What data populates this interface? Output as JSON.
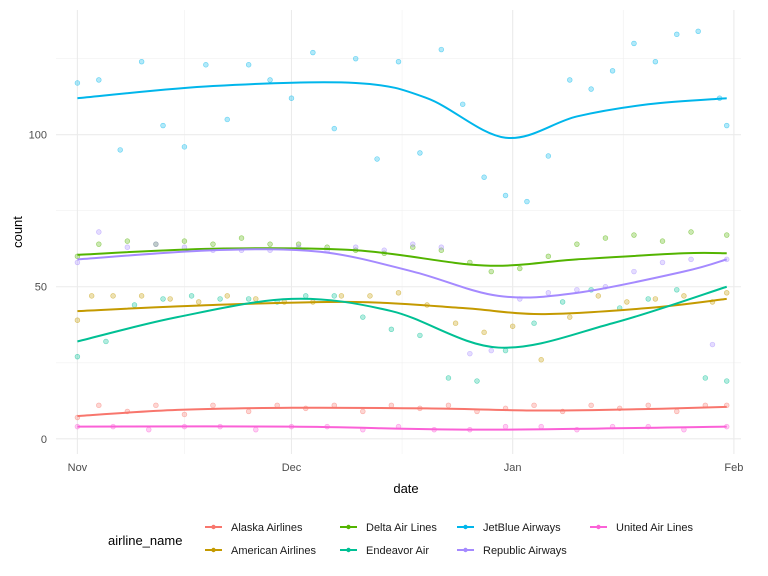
{
  "chart_data": {
    "type": "scatter",
    "title": "",
    "xlabel": "date",
    "ylabel": "count",
    "x_ticks": [
      "Nov",
      "Dec",
      "Jan",
      "Feb"
    ],
    "y_ticks": [
      0,
      50,
      100
    ],
    "xlim": [
      "2013-10-29",
      "2014-02-02"
    ],
    "ylim": [
      -5,
      141
    ],
    "grid": true,
    "legend_title": "airline_name",
    "legend_position": "bottom",
    "smooth_lines": true,
    "series": [
      {
        "name": "Alaska Airlines",
        "color": "#F8766D",
        "points": [
          [
            "2013-11-01",
            7
          ],
          [
            "2013-11-04",
            11
          ],
          [
            "2013-11-08",
            9
          ],
          [
            "2013-11-12",
            11
          ],
          [
            "2013-11-16",
            8
          ],
          [
            "2013-11-20",
            11
          ],
          [
            "2013-11-25",
            9
          ],
          [
            "2013-11-29",
            11
          ],
          [
            "2013-12-03",
            10
          ],
          [
            "2013-12-07",
            11
          ],
          [
            "2013-12-11",
            9
          ],
          [
            "2013-12-15",
            11
          ],
          [
            "2013-12-19",
            10
          ],
          [
            "2013-12-23",
            11
          ],
          [
            "2013-12-27",
            9
          ],
          [
            "2013-12-31",
            10
          ],
          [
            "2014-01-04",
            11
          ],
          [
            "2014-01-08",
            9
          ],
          [
            "2014-01-12",
            11
          ],
          [
            "2014-01-16",
            10
          ],
          [
            "2014-01-20",
            11
          ],
          [
            "2014-01-24",
            9
          ],
          [
            "2014-01-28",
            11
          ],
          [
            "2014-01-31",
            11
          ]
        ],
        "smooth": [
          [
            "2013-11-01",
            7.5
          ],
          [
            "2013-11-15",
            9.5
          ],
          [
            "2013-12-01",
            10.2
          ],
          [
            "2013-12-20",
            10.0
          ],
          [
            "2014-01-05",
            9.3
          ],
          [
            "2014-01-20",
            9.8
          ],
          [
            "2014-01-31",
            10.5
          ]
        ]
      },
      {
        "name": "American Airlines",
        "color": "#C49A00",
        "points": [
          [
            "2013-11-01",
            39
          ],
          [
            "2013-11-03",
            47
          ],
          [
            "2013-11-06",
            47
          ],
          [
            "2013-11-10",
            47
          ],
          [
            "2013-11-14",
            46
          ],
          [
            "2013-11-18",
            45
          ],
          [
            "2013-11-22",
            47
          ],
          [
            "2013-11-26",
            46
          ],
          [
            "2013-11-30",
            45
          ],
          [
            "2013-12-04",
            45
          ],
          [
            "2013-12-08",
            47
          ],
          [
            "2013-12-12",
            47
          ],
          [
            "2013-12-16",
            48
          ],
          [
            "2013-12-20",
            44
          ],
          [
            "2013-12-24",
            38
          ],
          [
            "2013-12-28",
            35
          ],
          [
            "2014-01-01",
            37
          ],
          [
            "2014-01-05",
            26
          ],
          [
            "2014-01-09",
            40
          ],
          [
            "2014-01-13",
            47
          ],
          [
            "2014-01-17",
            45
          ],
          [
            "2014-01-21",
            46
          ],
          [
            "2014-01-25",
            47
          ],
          [
            "2014-01-29",
            45
          ],
          [
            "2014-01-31",
            48
          ]
        ],
        "smooth": [
          [
            "2013-11-01",
            42
          ],
          [
            "2013-11-20",
            44
          ],
          [
            "2013-12-10",
            45
          ],
          [
            "2013-12-25",
            43
          ],
          [
            "2014-01-05",
            41
          ],
          [
            "2014-01-20",
            43
          ],
          [
            "2014-01-31",
            46
          ]
        ]
      },
      {
        "name": "Delta Air Lines",
        "color": "#53B400",
        "points": [
          [
            "2013-11-01",
            60
          ],
          [
            "2013-11-04",
            64
          ],
          [
            "2013-11-08",
            65
          ],
          [
            "2013-11-12",
            64
          ],
          [
            "2013-11-16",
            65
          ],
          [
            "2013-11-20",
            64
          ],
          [
            "2013-11-24",
            66
          ],
          [
            "2013-11-28",
            64
          ],
          [
            "2013-12-02",
            64
          ],
          [
            "2013-12-06",
            63
          ],
          [
            "2013-12-10",
            62
          ],
          [
            "2013-12-14",
            61
          ],
          [
            "2013-12-18",
            63
          ],
          [
            "2013-12-22",
            62
          ],
          [
            "2013-12-26",
            58
          ],
          [
            "2013-12-29",
            55
          ],
          [
            "2014-01-02",
            56
          ],
          [
            "2014-01-06",
            60
          ],
          [
            "2014-01-10",
            64
          ],
          [
            "2014-01-14",
            66
          ],
          [
            "2014-01-18",
            67
          ],
          [
            "2014-01-22",
            65
          ],
          [
            "2014-01-26",
            68
          ],
          [
            "2014-01-31",
            67
          ]
        ],
        "smooth": [
          [
            "2013-11-01",
            60.5
          ],
          [
            "2013-11-20",
            62.5
          ],
          [
            "2013-12-10",
            62
          ],
          [
            "2013-12-28",
            57
          ],
          [
            "2014-01-10",
            59
          ],
          [
            "2014-01-25",
            61
          ],
          [
            "2014-01-31",
            61
          ]
        ]
      },
      {
        "name": "Endeavor Air",
        "color": "#00C094",
        "points": [
          [
            "2013-11-01",
            27
          ],
          [
            "2013-11-05",
            32
          ],
          [
            "2013-11-09",
            44
          ],
          [
            "2013-11-13",
            46
          ],
          [
            "2013-11-17",
            47
          ],
          [
            "2013-11-21",
            46
          ],
          [
            "2013-11-25",
            46
          ],
          [
            "2013-11-29",
            45
          ],
          [
            "2013-12-03",
            47
          ],
          [
            "2013-12-07",
            47
          ],
          [
            "2013-12-11",
            40
          ],
          [
            "2013-12-15",
            36
          ],
          [
            "2013-12-19",
            34
          ],
          [
            "2013-12-23",
            20
          ],
          [
            "2013-12-27",
            19
          ],
          [
            "2013-12-31",
            29
          ],
          [
            "2014-01-04",
            38
          ],
          [
            "2014-01-08",
            45
          ],
          [
            "2014-01-12",
            49
          ],
          [
            "2014-01-16",
            43
          ],
          [
            "2014-01-20",
            46
          ],
          [
            "2014-01-24",
            49
          ],
          [
            "2014-01-28",
            20
          ],
          [
            "2014-01-31",
            19
          ]
        ],
        "smooth": [
          [
            "2013-11-01",
            32
          ],
          [
            "2013-11-15",
            40
          ],
          [
            "2013-12-01",
            46
          ],
          [
            "2013-12-15",
            42
          ],
          [
            "2013-12-30",
            30
          ],
          [
            "2014-01-15",
            38
          ],
          [
            "2014-01-31",
            50
          ]
        ]
      },
      {
        "name": "JetBlue Airways",
        "color": "#00B6EB",
        "points": [
          [
            "2013-11-01",
            117
          ],
          [
            "2013-11-04",
            118
          ],
          [
            "2013-11-07",
            95
          ],
          [
            "2013-11-10",
            124
          ],
          [
            "2013-11-13",
            103
          ],
          [
            "2013-11-16",
            96
          ],
          [
            "2013-11-19",
            123
          ],
          [
            "2013-11-22",
            105
          ],
          [
            "2013-11-25",
            123
          ],
          [
            "2013-11-28",
            118
          ],
          [
            "2013-12-01",
            112
          ],
          [
            "2013-12-04",
            127
          ],
          [
            "2013-12-07",
            102
          ],
          [
            "2013-12-10",
            125
          ],
          [
            "2013-12-13",
            92
          ],
          [
            "2013-12-16",
            124
          ],
          [
            "2013-12-19",
            94
          ],
          [
            "2013-12-22",
            128
          ],
          [
            "2013-12-25",
            110
          ],
          [
            "2013-12-28",
            86
          ],
          [
            "2013-12-31",
            80
          ],
          [
            "2014-01-03",
            78
          ],
          [
            "2014-01-06",
            93
          ],
          [
            "2014-01-09",
            118
          ],
          [
            "2014-01-12",
            115
          ],
          [
            "2014-01-15",
            121
          ],
          [
            "2014-01-18",
            130
          ],
          [
            "2014-01-21",
            124
          ],
          [
            "2014-01-24",
            133
          ],
          [
            "2014-01-27",
            134
          ],
          [
            "2014-01-30",
            112
          ],
          [
            "2014-01-31",
            103
          ]
        ],
        "smooth": [
          [
            "2013-11-01",
            112
          ],
          [
            "2013-11-20",
            116
          ],
          [
            "2013-12-10",
            117
          ],
          [
            "2013-12-20",
            112
          ],
          [
            "2013-12-31",
            99
          ],
          [
            "2014-01-10",
            106
          ],
          [
            "2014-01-20",
            110
          ],
          [
            "2014-01-31",
            112
          ]
        ]
      },
      {
        "name": "Republic Airways",
        "color": "#A58AFF",
        "points": [
          [
            "2013-11-01",
            58
          ],
          [
            "2013-11-04",
            68
          ],
          [
            "2013-11-08",
            63
          ],
          [
            "2013-11-12",
            64
          ],
          [
            "2013-11-16",
            63
          ],
          [
            "2013-11-20",
            62
          ],
          [
            "2013-11-24",
            62
          ],
          [
            "2013-11-28",
            62
          ],
          [
            "2013-12-02",
            63
          ],
          [
            "2013-12-06",
            62
          ],
          [
            "2013-12-10",
            63
          ],
          [
            "2013-12-14",
            62
          ],
          [
            "2013-12-18",
            64
          ],
          [
            "2013-12-22",
            63
          ],
          [
            "2013-12-26",
            28
          ],
          [
            "2013-12-29",
            29
          ],
          [
            "2014-01-02",
            46
          ],
          [
            "2014-01-06",
            48
          ],
          [
            "2014-01-10",
            49
          ],
          [
            "2014-01-14",
            50
          ],
          [
            "2014-01-18",
            55
          ],
          [
            "2014-01-22",
            58
          ],
          [
            "2014-01-26",
            59
          ],
          [
            "2014-01-29",
            31
          ],
          [
            "2014-01-31",
            59
          ]
        ],
        "smooth": [
          [
            "2013-11-01",
            59
          ],
          [
            "2013-11-20",
            62
          ],
          [
            "2013-12-05",
            61.5
          ],
          [
            "2013-12-18",
            55
          ],
          [
            "2013-12-30",
            47
          ],
          [
            "2014-01-10",
            48
          ],
          [
            "2014-01-25",
            55
          ],
          [
            "2014-01-31",
            59
          ]
        ]
      },
      {
        "name": "United Air Lines",
        "color": "#FB61D7",
        "points": [
          [
            "2013-11-01",
            4
          ],
          [
            "2013-11-06",
            4
          ],
          [
            "2013-11-11",
            3
          ],
          [
            "2013-11-16",
            4
          ],
          [
            "2013-11-21",
            4
          ],
          [
            "2013-11-26",
            3
          ],
          [
            "2013-12-01",
            4
          ],
          [
            "2013-12-06",
            4
          ],
          [
            "2013-12-11",
            3
          ],
          [
            "2013-12-16",
            4
          ],
          [
            "2013-12-21",
            3
          ],
          [
            "2013-12-26",
            3
          ],
          [
            "2013-12-31",
            4
          ],
          [
            "2014-01-05",
            4
          ],
          [
            "2014-01-10",
            3
          ],
          [
            "2014-01-15",
            4
          ],
          [
            "2014-01-20",
            4
          ],
          [
            "2014-01-25",
            3
          ],
          [
            "2014-01-31",
            4
          ]
        ],
        "smooth": [
          [
            "2013-11-01",
            4
          ],
          [
            "2013-12-01",
            4
          ],
          [
            "2013-12-28",
            3
          ],
          [
            "2014-01-31",
            4
          ]
        ]
      }
    ]
  }
}
